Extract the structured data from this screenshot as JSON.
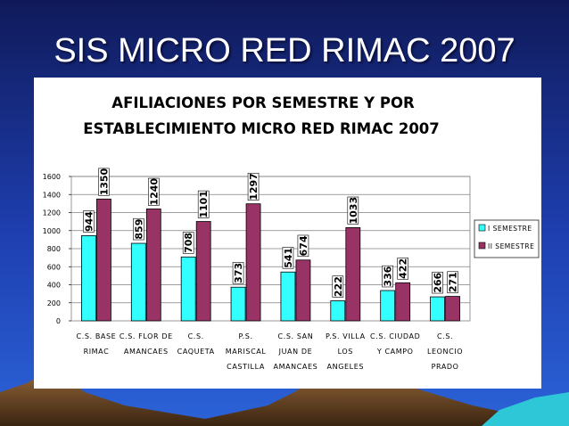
{
  "slide": {
    "title": "SIS MICRO RED RIMAC 2007"
  },
  "chart_data": {
    "type": "bar",
    "title_line1": "AFILIACIONES POR SEMESTRE Y POR",
    "title_line2": "ESTABLECIMIENTO MICRO RED RIMAC 2007",
    "ylim": [
      0,
      1600
    ],
    "yticks": [
      "0",
      "200",
      "400",
      "600",
      "800",
      "1000",
      "1200",
      "1400",
      "1600"
    ],
    "grid": true,
    "legend_placement": "right",
    "categories": [
      [
        "C.S. BASE",
        "RIMAC"
      ],
      [
        "C.S. FLOR DE",
        "AMANCAES"
      ],
      [
        "C.S.",
        "CAQUETA"
      ],
      [
        "P.S.",
        "MARISCAL",
        "CASTILLA"
      ],
      [
        "C.S. SAN",
        "JUAN DE",
        "AMANCAES"
      ],
      [
        "P.S. VILLA",
        "LOS",
        "ANGELES"
      ],
      [
        "C.S. CIUDAD",
        "Y CAMPO"
      ],
      [
        "C.S.",
        "LEONCIO",
        "PRADO"
      ]
    ],
    "series": [
      {
        "name": "I SEMESTRE",
        "color": "#33ffff",
        "values": [
          944,
          859,
          708,
          373,
          541,
          222,
          336,
          266
        ]
      },
      {
        "name": "II SEMESTRE",
        "color": "#993366",
        "values": [
          1350,
          1240,
          1101,
          1297,
          674,
          1033,
          422,
          271
        ]
      }
    ]
  }
}
